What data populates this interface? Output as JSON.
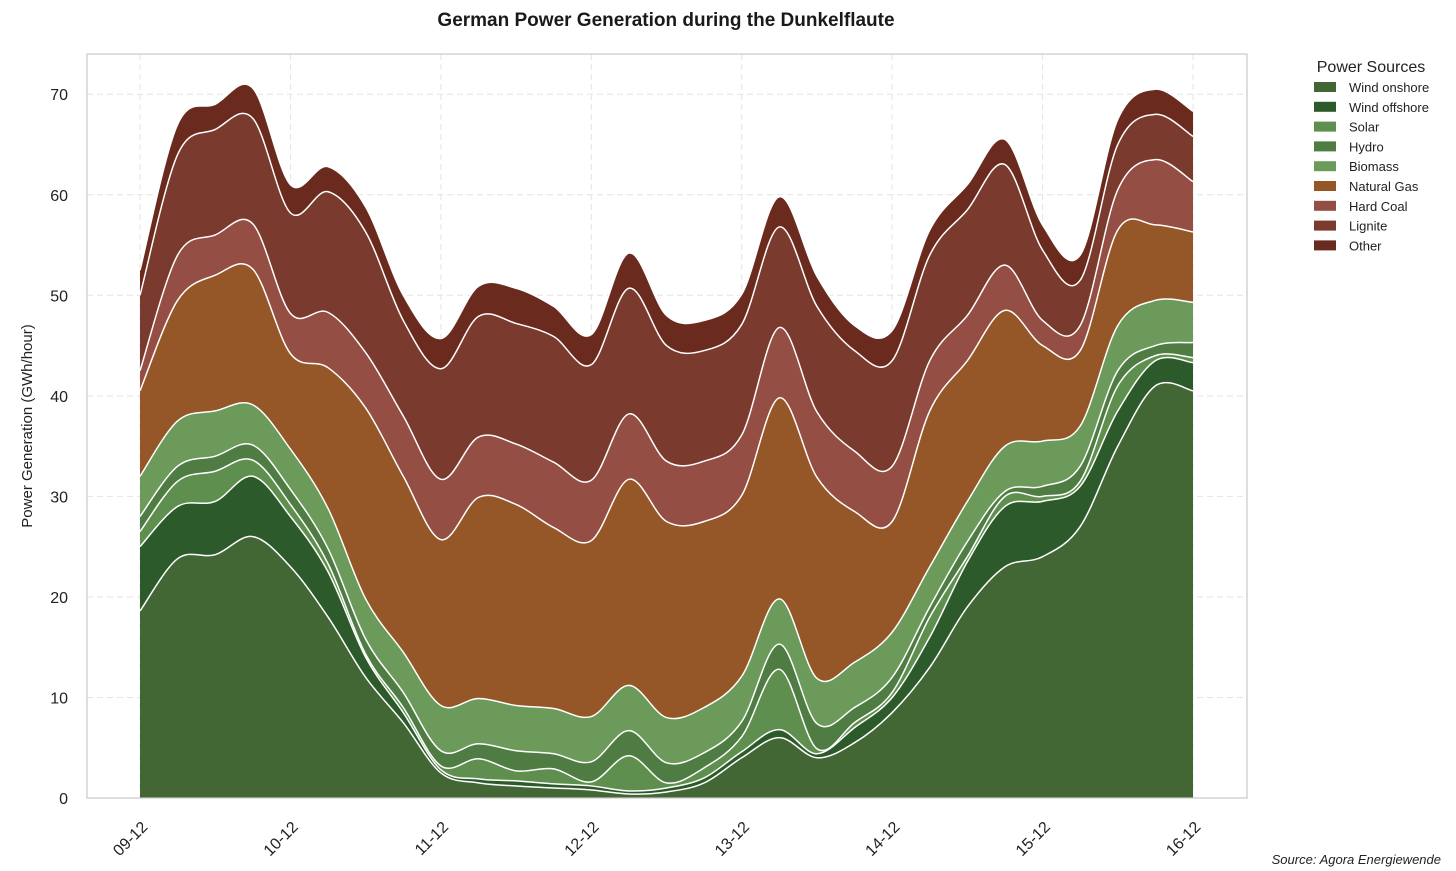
{
  "chart_data": {
    "type": "area",
    "stacked": true,
    "title": "German Power Generation during the Dunkelflaute",
    "ylabel": "Power Generation (GWh/hour)",
    "xlabel": "",
    "ylim": [
      0,
      74
    ],
    "xlim": [
      0,
      7
    ],
    "yticks": [
      0,
      10,
      20,
      30,
      40,
      50,
      60,
      70
    ],
    "xticks": [
      {
        "pos": 0,
        "label": "09-12"
      },
      {
        "pos": 1,
        "label": "10-12"
      },
      {
        "pos": 2,
        "label": "11-12"
      },
      {
        "pos": 3,
        "label": "12-12"
      },
      {
        "pos": 4,
        "label": "13-12"
      },
      {
        "pos": 5,
        "label": "14-12"
      },
      {
        "pos": 6,
        "label": "15-12"
      },
      {
        "pos": 7,
        "label": "16-12"
      }
    ],
    "grid": true,
    "legend_title": "Power Sources",
    "legend_position": "outside-top-right",
    "source": "Source: Agora Energiewende",
    "x": [
      0,
      0.25,
      0.5,
      0.75,
      1,
      1.25,
      1.5,
      1.75,
      2,
      2.25,
      2.5,
      2.75,
      3,
      3.25,
      3.5,
      3.75,
      4,
      4.25,
      4.5,
      4.75,
      5,
      5.25,
      5.5,
      5.75,
      6,
      6.25,
      6.5,
      6.75,
      7
    ],
    "series": [
      {
        "name": "Wind onshore",
        "color": "#426634",
        "values": [
          18.6,
          23.8,
          24.2,
          26.0,
          23.0,
          18.0,
          12.0,
          7.5,
          2.5,
          1.5,
          1.2,
          1.0,
          0.8,
          0.4,
          0.6,
          1.5,
          4.0,
          6.0,
          4.0,
          5.5,
          8.5,
          13.0,
          19.0,
          23.0,
          24.0,
          27.0,
          35.0,
          41.0,
          40.5
        ]
      },
      {
        "name": "Wind offshore",
        "color": "#2d5a2a",
        "values": [
          6.4,
          5.2,
          5.3,
          6.0,
          5.0,
          4.5,
          2.0,
          1.0,
          0.3,
          0.4,
          0.5,
          0.4,
          0.4,
          0.3,
          0.4,
          0.5,
          0.6,
          0.8,
          0.4,
          1.5,
          1.5,
          3.0,
          4.5,
          6.0,
          5.5,
          4.0,
          3.5,
          2.5,
          2.8
        ]
      },
      {
        "name": "Solar",
        "color": "#5e8f4e",
        "values": [
          1.5,
          2.5,
          3.0,
          1.6,
          1.2,
          0.8,
          0.3,
          0.5,
          0.4,
          2.0,
          1.0,
          1.5,
          0.4,
          3.5,
          0.5,
          1.0,
          1.5,
          6.0,
          0.5,
          0.5,
          0.5,
          2.0,
          0.5,
          1.0,
          0.5,
          0.5,
          2.5,
          0.5,
          0.5
        ]
      },
      {
        "name": "Hydro",
        "color": "#4f7c43",
        "values": [
          1.5,
          1.5,
          1.5,
          1.5,
          1.5,
          1.5,
          1.5,
          1.5,
          1.5,
          1.5,
          2.0,
          1.5,
          2.0,
          2.5,
          2.0,
          1.5,
          1.5,
          2.5,
          2.5,
          1.5,
          1.5,
          1.0,
          1.5,
          0.5,
          1.0,
          1.5,
          1.5,
          1.0,
          1.5
        ]
      },
      {
        "name": "Biomass",
        "color": "#6b9a5a",
        "values": [
          4.0,
          4.5,
          4.5,
          4.0,
          4.0,
          4.0,
          4.0,
          4.0,
          4.5,
          4.5,
          4.5,
          4.5,
          4.5,
          4.5,
          4.5,
          4.5,
          4.5,
          4.5,
          4.5,
          4.5,
          4.5,
          4.0,
          4.0,
          4.5,
          4.5,
          4.0,
          4.5,
          4.5,
          4.0
        ]
      },
      {
        "name": "Natural Gas",
        "color": "#955727",
        "values": [
          8.5,
          12.0,
          13.5,
          13.5,
          9.5,
          14.0,
          19.0,
          17.5,
          16.5,
          20.0,
          20.0,
          18.0,
          17.5,
          20.5,
          19.5,
          18.5,
          18.0,
          20.0,
          20.0,
          15.0,
          11.0,
          15.5,
          14.0,
          13.5,
          9.5,
          7.5,
          9.5,
          7.5,
          7.0
        ]
      },
      {
        "name": "Hard Coal",
        "color": "#944e44",
        "values": [
          2.0,
          4.5,
          4.0,
          4.5,
          4.0,
          5.5,
          5.5,
          6.0,
          6.0,
          6.0,
          6.0,
          6.5,
          6.0,
          6.5,
          6.0,
          6.0,
          6.0,
          7.0,
          6.5,
          6.0,
          5.5,
          5.0,
          4.5,
          4.5,
          2.5,
          2.5,
          4.0,
          6.5,
          5.0
        ]
      },
      {
        "name": "Lignite",
        "color": "#7a3a2e",
        "values": [
          7.5,
          10.0,
          10.5,
          10.5,
          10.0,
          12.0,
          12.0,
          9.5,
          11.0,
          12.0,
          12.0,
          12.5,
          11.5,
          12.5,
          11.5,
          11.0,
          11.0,
          10.0,
          10.5,
          10.0,
          10.5,
          10.5,
          10.5,
          10.0,
          7.0,
          4.5,
          4.5,
          4.5,
          4.5
        ]
      },
      {
        "name": "Other",
        "color": "#6a2b1e",
        "values": [
          2.5,
          3.0,
          2.5,
          3.0,
          2.8,
          2.5,
          2.5,
          2.5,
          3.0,
          3.0,
          3.5,
          3.0,
          3.0,
          3.5,
          3.0,
          3.0,
          3.0,
          3.0,
          3.0,
          2.5,
          3.0,
          2.5,
          2.5,
          2.5,
          2.5,
          2.5,
          2.5,
          2.5,
          2.5
        ]
      }
    ]
  }
}
